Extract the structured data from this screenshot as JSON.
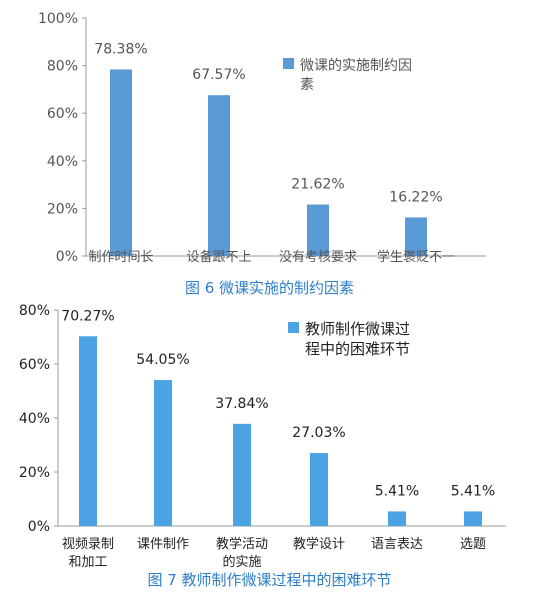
{
  "chart_data": [
    {
      "type": "bar",
      "categories": [
        "制作时间长",
        "设备跟不上",
        "没有考核要求",
        "学生褒贬不一"
      ],
      "series": [
        {
          "name": "微课的实施制约因素",
          "values": [
            78.38,
            67.57,
            21.62,
            16.22
          ]
        }
      ],
      "data_labels": [
        "78.38%",
        "67.57%",
        "21.62%",
        "16.22%"
      ],
      "y_ticks": [
        "0%",
        "20%",
        "40%",
        "60%",
        "80%",
        "100%"
      ],
      "ylim": [
        0,
        100
      ],
      "legend_position": "top-right",
      "grid": false,
      "color": "#5b9bd5",
      "caption": "图 6 微课实施的制约因素"
    },
    {
      "type": "bar",
      "categories": [
        "视频录制和加工",
        "课件制作",
        "教学活动的实施",
        "教学设计",
        "语言表达",
        "选题"
      ],
      "series": [
        {
          "name": "教师制作微课过程中的困难环节",
          "values": [
            70.27,
            54.05,
            37.84,
            27.03,
            5.41,
            5.41
          ]
        }
      ],
      "data_labels": [
        "70.27%",
        "54.05%",
        "37.84%",
        "27.03%",
        "5.41%",
        "5.41%"
      ],
      "y_ticks": [
        "0%",
        "20%",
        "40%",
        "60%",
        "80%"
      ],
      "ylim": [
        0,
        80
      ],
      "legend_position": "top-right",
      "grid": false,
      "color": "#4ba3e3",
      "caption": "图 7 教师制作微课过程中的困难环节"
    }
  ]
}
